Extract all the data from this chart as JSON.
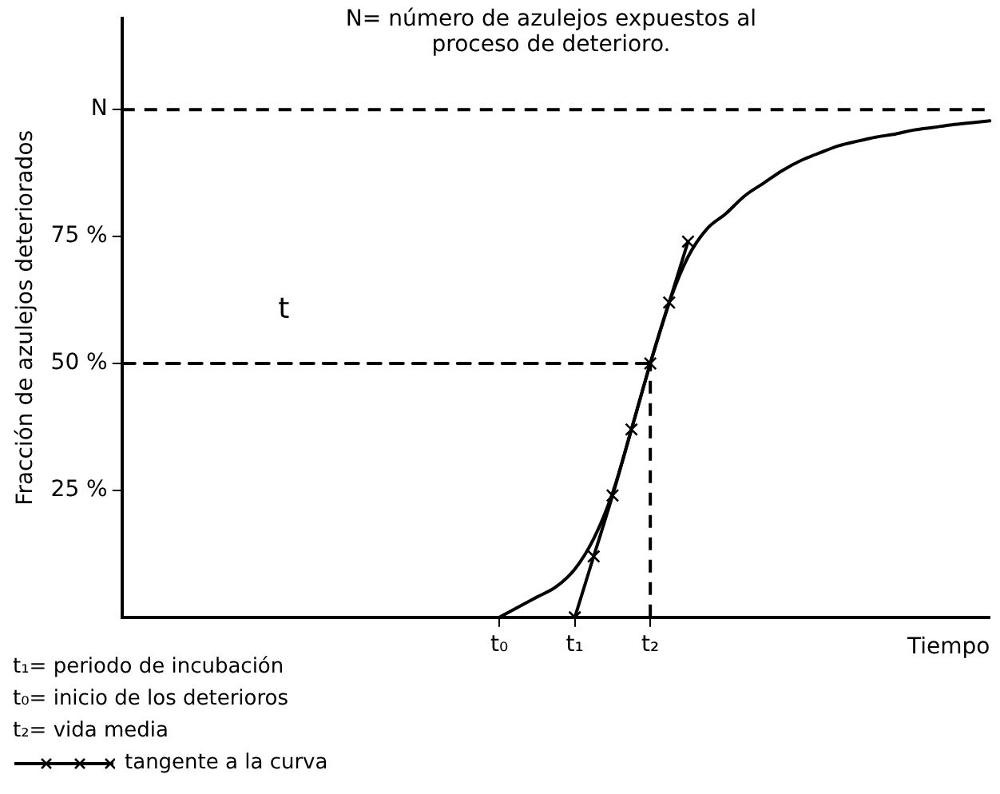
{
  "chart_data": {
    "type": "line",
    "title": "N= número de azulejos expuestos al proceso de deterioro.",
    "ylabel": "Fracción de azulejos deteriorados",
    "xlabel": "Tiempo",
    "categories": [
      null,
      null,
      null,
      null,
      null,
      null,
      null,
      null,
      null,
      null,
      null,
      null,
      null,
      null,
      null,
      null,
      null,
      null,
      null,
      null,
      "t₀",
      null,
      null,
      null,
      "t₁",
      null,
      null,
      null,
      "t₂",
      null,
      null,
      null,
      null,
      null,
      null,
      null,
      null,
      null,
      null,
      null,
      null,
      null,
      null,
      null,
      null,
      null,
      null
    ],
    "ylim": [
      0,
      118
    ],
    "yticks": [
      {
        "value": 25,
        "label": "25 %"
      },
      {
        "value": 50,
        "label": "50 %"
      },
      {
        "value": 75,
        "label": "75 %"
      },
      {
        "value": 100,
        "label": "N"
      }
    ],
    "grid": false,
    "legend": "bottom left",
    "series": [
      {
        "color": "#000000",
        "marker": "none",
        "values": [
          null,
          null,
          null,
          null,
          null,
          null,
          null,
          null,
          null,
          null,
          null,
          null,
          null,
          null,
          null,
          null,
          null,
          null,
          null,
          null,
          0,
          2,
          4,
          6,
          9.5,
          15.5,
          24.5,
          37,
          50,
          62,
          71,
          76.5,
          79.5,
          83,
          85.5,
          88,
          90,
          91.5,
          92.9,
          93.8,
          94.6,
          95.2,
          96,
          96.5,
          97,
          97.4,
          97.8
        ]
      },
      {
        "name": "tangente a la curva",
        "color": "#000000",
        "marker": "cross",
        "values": [
          null,
          null,
          null,
          null,
          null,
          null,
          null,
          null,
          null,
          null,
          null,
          null,
          null,
          null,
          null,
          null,
          null,
          null,
          null,
          null,
          null,
          null,
          null,
          null,
          0,
          12,
          24,
          37,
          50,
          62,
          74,
          null,
          null,
          null,
          null,
          null,
          null,
          null,
          null,
          null,
          null,
          null,
          null,
          null,
          null,
          null,
          null
        ]
      },
      {
        "color": "#000000",
        "marker": "none",
        "line_style": "dashed",
        "values": [
          50,
          50,
          50,
          50,
          50,
          50,
          50,
          50,
          50,
          50,
          50,
          50,
          50,
          50,
          50,
          50,
          50,
          50,
          50,
          50,
          50,
          50,
          50,
          50,
          50,
          50,
          50,
          50,
          50,
          null,
          null,
          null,
          null,
          null,
          null,
          null,
          null,
          null,
          null,
          null,
          null,
          null,
          null,
          null,
          null,
          null,
          null
        ]
      }
    ],
    "ref_lines": [
      {
        "axis": "x",
        "value": "t₂",
        "line_style": "dashed",
        "color": "#000000"
      },
      {
        "axis": "y",
        "value": 100,
        "line_style": "dashed",
        "color": "#000000"
      }
    ],
    "annotations": [
      "t",
      "t₁= periodo de incubación",
      "t₀= inicio de los deterioros",
      "t₂= vida media"
    ]
  }
}
